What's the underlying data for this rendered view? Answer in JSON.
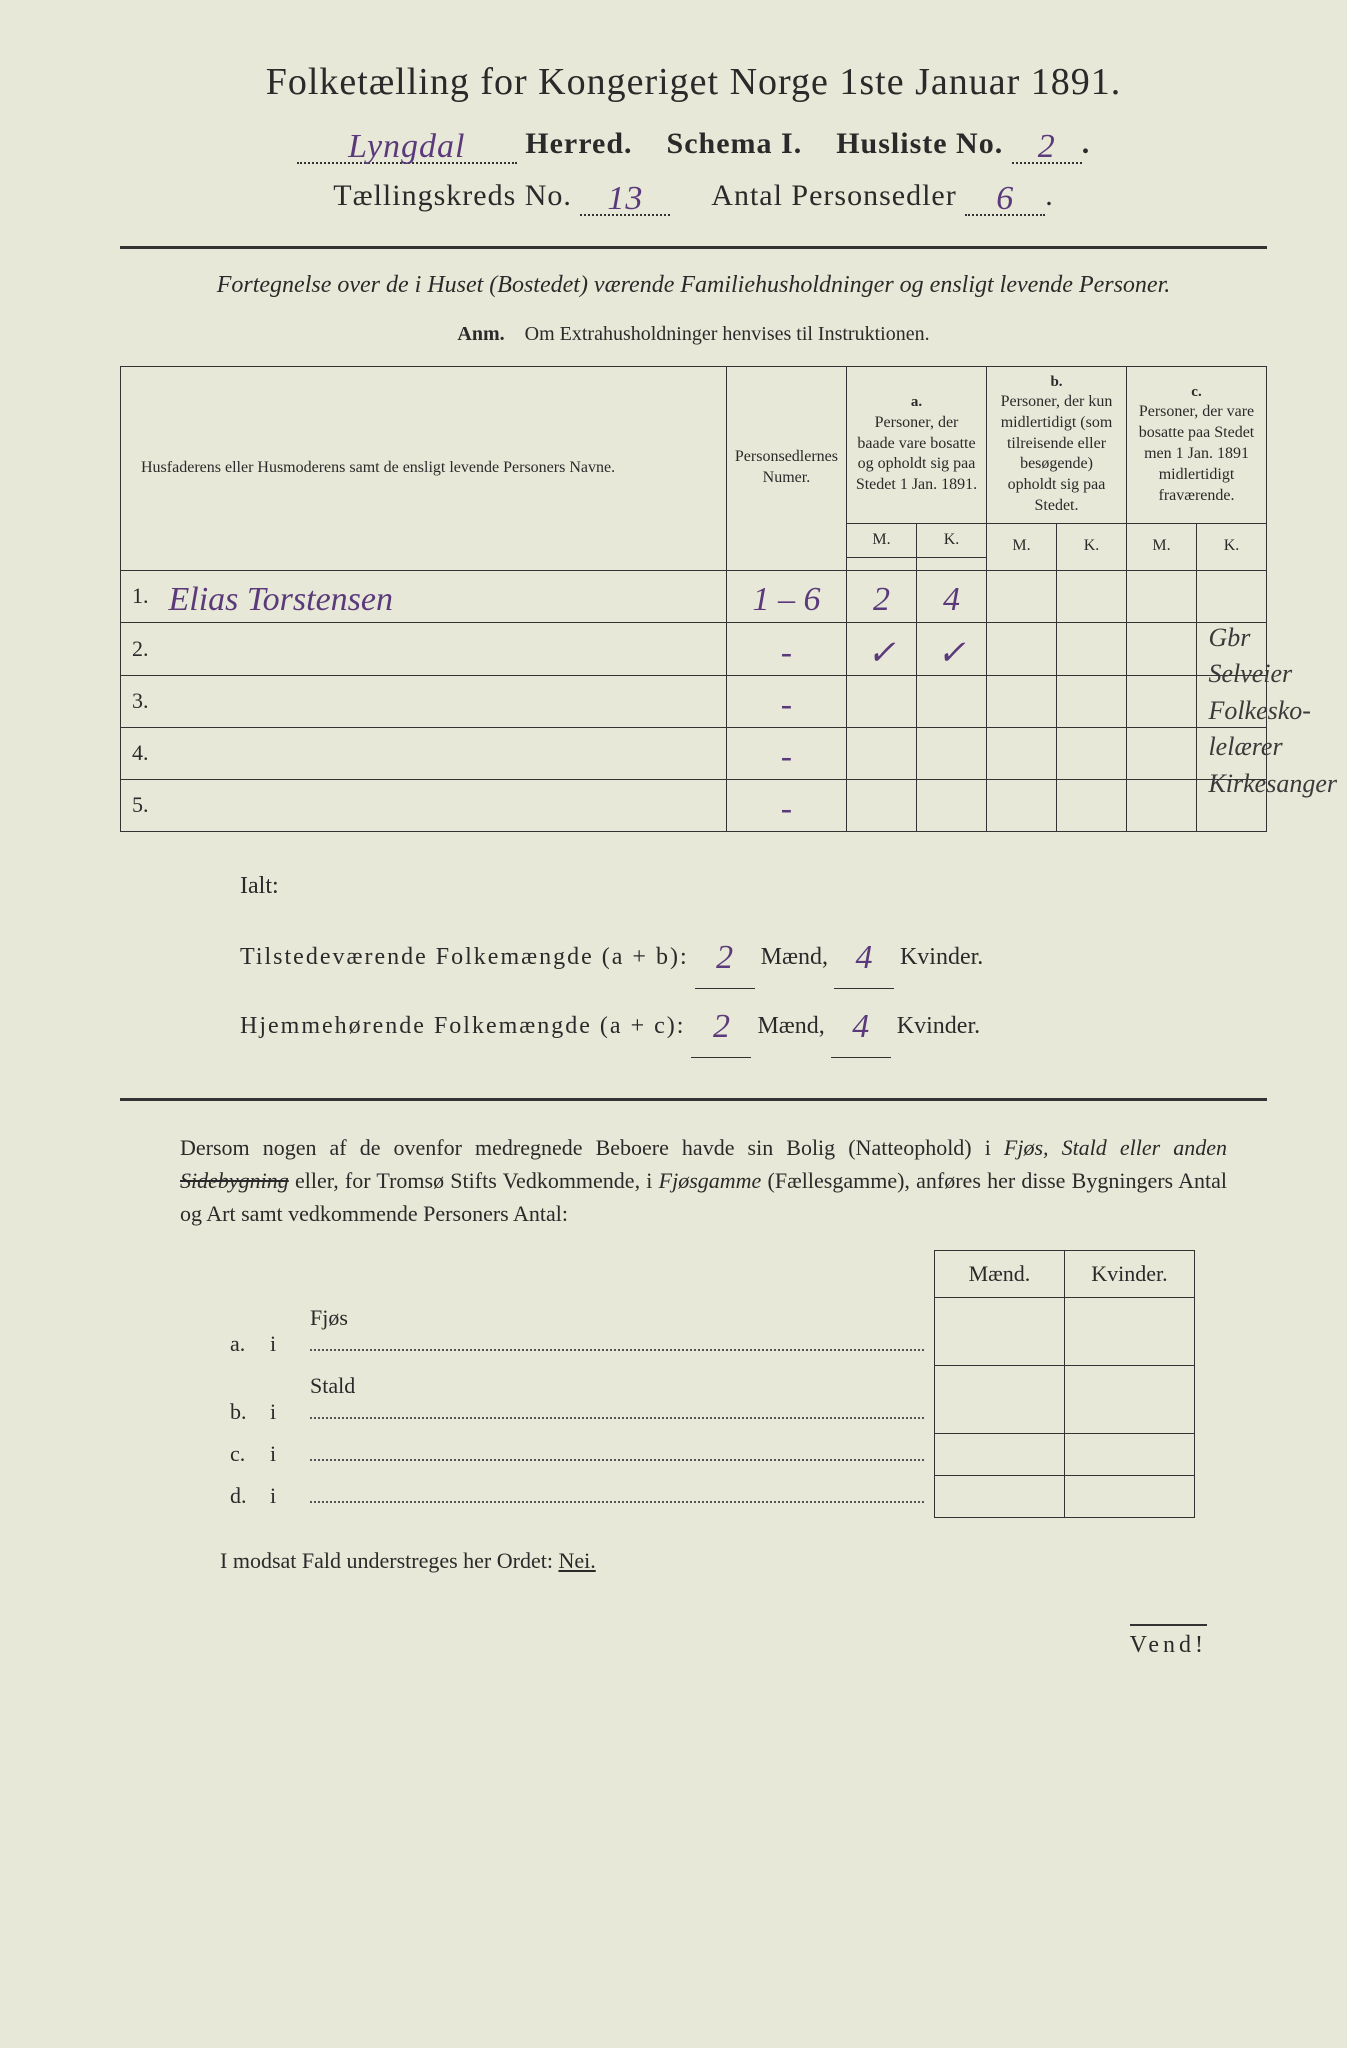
{
  "title": "Folketælling for Kongeriget Norge 1ste Januar 1891.",
  "header": {
    "herred_value": "Lyngdal",
    "herred_label": "Herred.",
    "schema_label": "Schema I.",
    "husliste_label": "Husliste No.",
    "husliste_value": "2",
    "kreds_label": "Tællingskreds No.",
    "kreds_value": "13",
    "antal_label": "Antal Personsedler",
    "antal_value": "6"
  },
  "description": "Fortegnelse over de i Huset (Bostedet) værende Familiehusholdninger og ensligt levende Personer.",
  "anm_label": "Anm.",
  "anm_text": "Om Extrahusholdninger henvises til Instruktionen.",
  "table": {
    "col_name": "Husfaderens eller Husmoderens samt de ensligt levende Personers Navne.",
    "col_num": "Personsedlernes Numer.",
    "col_a_label": "a.",
    "col_a": "Personer, der baade vare bosatte og opholdt sig paa Stedet 1 Jan. 1891.",
    "col_b_label": "b.",
    "col_b": "Personer, der kun midlertidigt (som tilreisende eller besøgende) opholdt sig paa Stedet.",
    "col_c_label": "c.",
    "col_c": "Personer, der vare bosatte paa Stedet men 1 Jan. 1891 midlertidigt fraværende.",
    "m": "M.",
    "k": "K.",
    "rows": [
      {
        "n": "1.",
        "name": "Elias Torstensen",
        "num": "1 – 6",
        "aM": "2",
        "aK": "4",
        "bM": "",
        "bK": "",
        "cM": "",
        "cK": ""
      },
      {
        "n": "2.",
        "name": "",
        "num": "-",
        "aM": "✓",
        "aK": "✓",
        "bM": "",
        "bK": "",
        "cM": "",
        "cK": ""
      },
      {
        "n": "3.",
        "name": "",
        "num": "-",
        "aM": "",
        "aK": "",
        "bM": "",
        "bK": "",
        "cM": "",
        "cK": ""
      },
      {
        "n": "4.",
        "name": "",
        "num": "-",
        "aM": "",
        "aK": "",
        "bM": "",
        "bK": "",
        "cM": "",
        "cK": ""
      },
      {
        "n": "5.",
        "name": "",
        "num": "-",
        "aM": "",
        "aK": "",
        "bM": "",
        "bK": "",
        "cM": "",
        "cK": ""
      }
    ]
  },
  "margin_notes": [
    "Gbr",
    "Selveier",
    "Folkesko-",
    "lelærer",
    "Kirkesanger"
  ],
  "totals": {
    "ialt": "Ialt:",
    "line1_label": "Tilstedeværende Folkemængde (a + b):",
    "line1_m": "2",
    "line1_k": "4",
    "line2_label": "Hjemmehørende Folkemængde (a + c):",
    "line2_m": "2",
    "line2_k": "4",
    "maend": "Mænd,",
    "kvinder": "Kvinder."
  },
  "para": {
    "p1": "Dersom nogen af de ovenfor medregnede Beboere havde sin Bolig (Natteophold) i ",
    "p2_italic": "Fjøs, Stald eller anden ",
    "p2_strike": "Sidebygning",
    "p3": " eller, for Tromsø Stifts Vedkommende, i ",
    "p4_italic": "Fjøsgamme",
    "p5": " (Fællesgamme), anføres her disse Bygningers Antal og Art samt vedkommende Personers Antal:"
  },
  "bottom_table": {
    "h_maend": "Mænd.",
    "h_kvinder": "Kvinder.",
    "rows": [
      {
        "k": "a.",
        "i": "i",
        "label": "Fjøs"
      },
      {
        "k": "b.",
        "i": "i",
        "label": "Stald"
      },
      {
        "k": "c.",
        "i": "i",
        "label": ""
      },
      {
        "k": "d.",
        "i": "i",
        "label": ""
      }
    ]
  },
  "nei_line_pre": "I modsat Fald understreges her Ordet: ",
  "nei_line_word": "Nei.",
  "vend": "Vend!"
}
